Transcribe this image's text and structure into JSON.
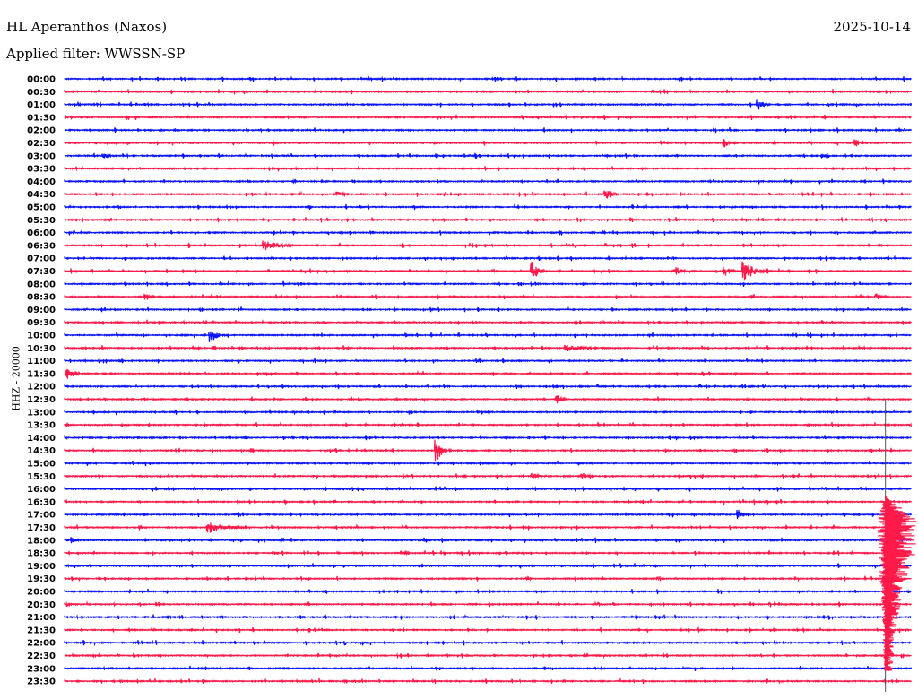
{
  "header": {
    "station": "HL Aperanthos (Naxos)",
    "date": "2025-10-14",
    "filter": "Applied filter: WWSSN-SP"
  },
  "chart_data": {
    "type": "line",
    "title": "HL Aperanthos (Naxos)",
    "ylabel": "HHZ - 20000",
    "row_minutes": 30,
    "colors": [
      "#0a14ff",
      "#ff1a4a"
    ],
    "rows": [
      "00:00",
      "00:30",
      "01:00",
      "01:30",
      "02:00",
      "02:30",
      "03:00",
      "03:30",
      "04:00",
      "04:30",
      "05:00",
      "05:30",
      "06:00",
      "06:30",
      "07:00",
      "07:30",
      "08:00",
      "08:30",
      "09:00",
      "09:30",
      "10:00",
      "10:30",
      "11:00",
      "11:30",
      "12:00",
      "12:30",
      "13:00",
      "13:30",
      "14:00",
      "14:30",
      "15:00",
      "15:30",
      "16:00",
      "16:30",
      "17:00",
      "17:30",
      "18:00",
      "18:30",
      "19:00",
      "19:30",
      "20:00",
      "20:30",
      "21:00",
      "21:30",
      "22:00",
      "22:30",
      "23:00",
      "23:30"
    ],
    "events": [
      {
        "row": "01:00",
        "minute": 24.6,
        "amp": 6,
        "dur": 0.5
      },
      {
        "row": "02:30",
        "minute": 23.4,
        "amp": 5,
        "dur": 0.6
      },
      {
        "row": "02:30",
        "minute": 28.0,
        "amp": 5,
        "dur": 0.6
      },
      {
        "row": "03:00",
        "minute": 1.4,
        "amp": 3,
        "dur": 0.5
      },
      {
        "row": "03:00",
        "minute": 26.9,
        "amp": 3,
        "dur": 0.4
      },
      {
        "row": "04:30",
        "minute": 9.7,
        "amp": 3,
        "dur": 0.6
      },
      {
        "row": "04:30",
        "minute": 19.2,
        "amp": 7,
        "dur": 0.5
      },
      {
        "row": "06:30",
        "minute": 7.1,
        "amp": 6,
        "dur": 1.3
      },
      {
        "row": "07:30",
        "minute": 16.6,
        "amp": 11,
        "dur": 0.5
      },
      {
        "row": "07:30",
        "minute": 21.7,
        "amp": 5,
        "dur": 0.4
      },
      {
        "row": "07:30",
        "minute": 23.4,
        "amp": 6,
        "dur": 0.5
      },
      {
        "row": "07:30",
        "minute": 24.1,
        "amp": 14,
        "dur": 0.7
      },
      {
        "row": "08:30",
        "minute": 2.9,
        "amp": 4,
        "dur": 0.5
      },
      {
        "row": "08:30",
        "minute": 28.8,
        "amp": 4,
        "dur": 0.5
      },
      {
        "row": "10:00",
        "minute": 5.2,
        "amp": 8,
        "dur": 0.5
      },
      {
        "row": "10:30",
        "minute": 17.8,
        "amp": 4,
        "dur": 1.5
      },
      {
        "row": "11:30",
        "minute": 0.1,
        "amp": 6,
        "dur": 0.5
      },
      {
        "row": "12:30",
        "minute": 17.5,
        "amp": 5,
        "dur": 0.5
      },
      {
        "row": "14:30",
        "minute": 13.2,
        "amp": 12,
        "dur": 0.5
      },
      {
        "row": "15:30",
        "minute": 16.6,
        "amp": 4,
        "dur": 0.4
      },
      {
        "row": "15:30",
        "minute": 18.4,
        "amp": 4,
        "dur": 0.5
      },
      {
        "row": "17:00",
        "minute": 23.9,
        "amp": 6,
        "dur": 0.3
      },
      {
        "row": "17:30",
        "minute": 5.1,
        "amp": 7,
        "dur": 1.5
      },
      {
        "row": "18:00",
        "minute": 0.3,
        "amp": 4,
        "dur": 0.3
      }
    ],
    "large_event": {
      "row": "16:30",
      "minute": 29.1,
      "amp": 120
    }
  }
}
